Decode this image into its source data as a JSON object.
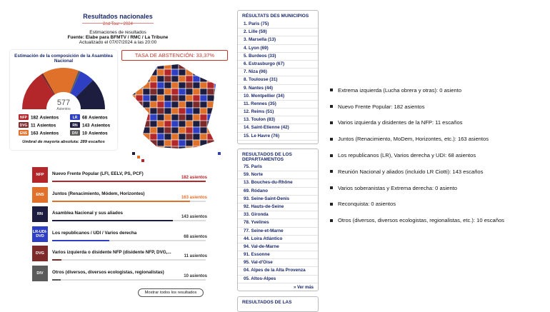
{
  "header": {
    "title": "Resultados nacionales",
    "subtitle": "2nd Tour - 2024",
    "estimates": "Estimaciones de resultados",
    "source": "Fuente: Elabe para BFMTV / RMC / La Tribune",
    "updated": "Actualizado el 07/07/2024 a las 20:00"
  },
  "hemicycle": {
    "title": "Estimación de la composición de la Asamblea Nacional",
    "total": 577,
    "seat_unit": "Asientos",
    "majority": "Umbral de mayoría absoluta: 289 escaños",
    "parties": [
      {
        "code": "NFP",
        "seats": 182,
        "color": "#b3262a"
      },
      {
        "code": "DVG",
        "seats": 11,
        "color": "#7d2a2a"
      },
      {
        "code": "ENS",
        "seats": 163,
        "color": "#e0712b"
      },
      {
        "code": "LR",
        "seats": 68,
        "color": "#2e3fc4"
      },
      {
        "code": "RN",
        "seats": 143,
        "color": "#1c1d3f"
      },
      {
        "code": "DIV",
        "seats": 10,
        "color": "#5b5b5b"
      }
    ]
  },
  "abstention": "TASA DE ABSTENCIÓN: 33,37%",
  "results": {
    "unit": "asientos",
    "rows": [
      {
        "code": "NFP",
        "name": "Nuevo Frente Popular (LFI, EELV, PS, PCF)",
        "seats": 182,
        "color": "#b3262a"
      },
      {
        "code": "ENS",
        "name": "Juntos (Renacimiento, Módem, Horizontes)",
        "seats": 163,
        "color": "#e0712b"
      },
      {
        "code": "RN",
        "name": "Asamblea Nacional y sus aliados",
        "seats": 143,
        "color": "#1c1d3f"
      },
      {
        "code": "LR-UDI-DVD",
        "name": "Los republicanos / UDI / Varios derecha",
        "seats": 68,
        "color": "#2e3fc4"
      },
      {
        "code": "DVG",
        "name": "Varios izquierda o disidente NFP (disidente NFP, DVG,...",
        "seats": 11,
        "color": "#7d2a2a"
      },
      {
        "code": "DIV",
        "name": "Otros (diversos, diversos ecologistas, regionalistas)",
        "seats": 10,
        "color": "#5b5b5b"
      }
    ]
  },
  "button": "Mostrar todos los resultados",
  "municipalities": {
    "title": "RÉSULTATS DES MUNICIPIOS",
    "items": [
      "1. Paris (75)",
      "2. Lille (59)",
      "3. Marsella (13)",
      "4. Lyon (69)",
      "5. Burdeos (33)",
      "6. Estrasburgo (67)",
      "7. Niza (06)",
      "8. Toulouse (31)",
      "9. Nantes (44)",
      "10. Montpellier (34)",
      "11. Rennes (35)",
      "12. Reims (51)",
      "13. Toulon (83)",
      "14. Saint-Etienne (42)",
      "15. Le Havre (76)"
    ]
  },
  "departments": {
    "title": "RESULTADOS DE LOS DEPARTAMENTOS",
    "items": [
      "75. Paris",
      "59. Norte",
      "13. Bouches-du-Rhône",
      "69. Ródano",
      "93. Seine-Saint-Denis",
      "92. Hauts-de-Seine",
      "33. Gironda",
      "78. Yvelines",
      "77. Seine-et-Marne",
      "44. Loira Atlántico",
      "94. Val-de-Marne",
      "91. Essonne",
      "95. Val-d'Oise",
      "04. Alpes de la Alta Provenza",
      "05. Altos-Alpes"
    ],
    "more": "» Ver más"
  },
  "next_box_title": "RESULTADOS DE LAS",
  "summary": [
    "Extrema izquierda (Lucha obrera y otras): 0 asiento",
    "Nuevo Frente Popular: 182 asientos",
    "Varios izquierda y disidentes de la NFP: 11 escaños",
    "Juntos (Renacimiento, MoDem, Horizontes, etc.): 163 asientos",
    "Los republicanos (LR), Varios derecha y UDI: 68 asientos",
    "Reunión Nacional y aliados (incluido LR Ciotti): 143 escaños",
    "Varios soberanistas y Extrema derecha: 0 asiento",
    "Reconquista: 0 asientos",
    "Otros (diversos, diversos ecologistas, regionalistas, etc.): 10 escaños"
  ]
}
